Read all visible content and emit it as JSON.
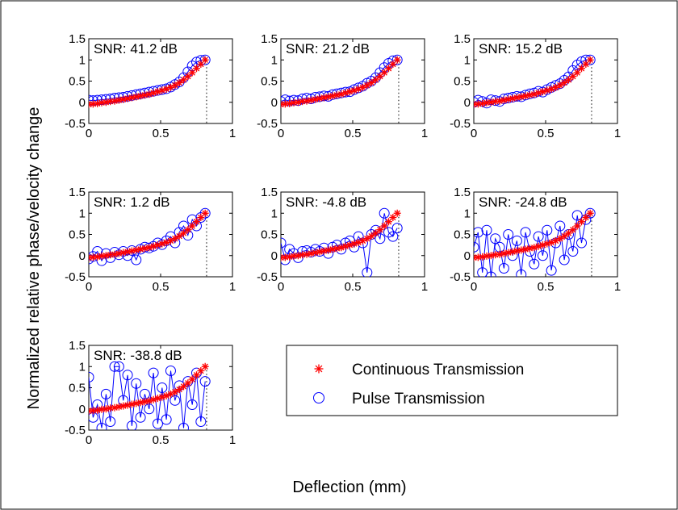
{
  "chart_data": {
    "type": "scatter",
    "layout": "small-multiples 3x3 (7 panels)",
    "ylabel": "Normalized relative phase/velocity change",
    "xlabel": "Deflection (mm)",
    "xlim": [
      0,
      1
    ],
    "ylim": [
      -0.5,
      1.5
    ],
    "xticks": [
      0,
      0.5,
      1
    ],
    "xtick_labels": [
      "0",
      "0.5",
      "1"
    ],
    "yticks": [
      -0.5,
      0,
      0.5,
      1,
      1.5
    ],
    "ytick_labels": [
      "-0.5",
      "0",
      "0.5",
      "1",
      "1.5"
    ],
    "reference_line_x": 0.82,
    "colors": {
      "continuous": "#ff0000",
      "pulse": "#0000ff",
      "axis": "#000000",
      "background": "#ffffff"
    },
    "legend": {
      "placement": "bottom-right",
      "entries": [
        {
          "label": "Continuous Transmission",
          "marker": "asterisk",
          "color": "#ff0000"
        },
        {
          "label": "Pulse Transmission",
          "marker": "circle-line",
          "color": "#0000ff"
        }
      ]
    },
    "continuous": {
      "x": [
        0.0,
        0.03,
        0.06,
        0.09,
        0.12,
        0.15,
        0.18,
        0.21,
        0.24,
        0.27,
        0.3,
        0.33,
        0.36,
        0.39,
        0.42,
        0.45,
        0.48,
        0.51,
        0.54,
        0.57,
        0.6,
        0.63,
        0.66,
        0.69,
        0.72,
        0.75,
        0.78,
        0.81
      ],
      "y": [
        -0.05,
        -0.04,
        -0.03,
        -0.01,
        0.0,
        0.02,
        0.03,
        0.05,
        0.07,
        0.09,
        0.11,
        0.13,
        0.15,
        0.17,
        0.19,
        0.22,
        0.25,
        0.28,
        0.31,
        0.35,
        0.4,
        0.46,
        0.53,
        0.61,
        0.7,
        0.8,
        0.9,
        1.0
      ]
    },
    "panels": [
      {
        "snr": "SNR: 41.2 dB",
        "x": [
          0.0,
          0.03,
          0.06,
          0.09,
          0.12,
          0.15,
          0.18,
          0.21,
          0.24,
          0.27,
          0.3,
          0.33,
          0.36,
          0.39,
          0.42,
          0.45,
          0.48,
          0.51,
          0.54,
          0.57,
          0.6,
          0.63,
          0.66,
          0.69,
          0.72,
          0.75,
          0.78,
          0.81
        ],
        "y": [
          0.05,
          0.04,
          0.05,
          0.06,
          0.07,
          0.08,
          0.1,
          0.11,
          0.12,
          0.14,
          0.16,
          0.18,
          0.2,
          0.22,
          0.24,
          0.26,
          0.28,
          0.3,
          0.32,
          0.36,
          0.42,
          0.48,
          0.58,
          0.72,
          0.86,
          0.95,
          0.99,
          1.0
        ]
      },
      {
        "snr": "SNR: 21.2 dB",
        "x": [
          0.0,
          0.03,
          0.06,
          0.09,
          0.12,
          0.15,
          0.18,
          0.21,
          0.24,
          0.27,
          0.3,
          0.33,
          0.36,
          0.39,
          0.42,
          0.45,
          0.48,
          0.51,
          0.54,
          0.57,
          0.6,
          0.63,
          0.66,
          0.69,
          0.72,
          0.75,
          0.78,
          0.81
        ],
        "y": [
          0.02,
          0.06,
          0.03,
          0.05,
          0.04,
          0.08,
          0.1,
          0.08,
          0.12,
          0.13,
          0.15,
          0.14,
          0.18,
          0.2,
          0.22,
          0.24,
          0.25,
          0.3,
          0.34,
          0.38,
          0.45,
          0.5,
          0.58,
          0.7,
          0.82,
          0.92,
          0.98,
          1.0
        ]
      },
      {
        "snr": "SNR: 15.2 dB",
        "x": [
          0.0,
          0.03,
          0.06,
          0.09,
          0.12,
          0.15,
          0.18,
          0.21,
          0.24,
          0.27,
          0.3,
          0.33,
          0.36,
          0.39,
          0.42,
          0.45,
          0.48,
          0.51,
          0.54,
          0.57,
          0.6,
          0.63,
          0.66,
          0.69,
          0.72,
          0.75,
          0.78,
          0.81
        ],
        "y": [
          0.0,
          0.05,
          0.02,
          -0.02,
          0.06,
          0.04,
          0.02,
          0.08,
          0.1,
          0.12,
          0.14,
          0.13,
          0.17,
          0.2,
          0.22,
          0.26,
          0.24,
          0.3,
          0.35,
          0.4,
          0.44,
          0.52,
          0.6,
          0.75,
          0.88,
          0.96,
          1.0,
          1.0
        ]
      },
      {
        "snr": "SNR: 1.2 dB",
        "x": [
          0.0,
          0.03,
          0.06,
          0.09,
          0.12,
          0.15,
          0.18,
          0.21,
          0.24,
          0.27,
          0.3,
          0.33,
          0.36,
          0.39,
          0.42,
          0.45,
          0.48,
          0.51,
          0.54,
          0.57,
          0.6,
          0.63,
          0.66,
          0.69,
          0.72,
          0.75,
          0.78,
          0.81
        ],
        "y": [
          -0.08,
          -0.02,
          0.1,
          -0.12,
          0.05,
          -0.05,
          0.08,
          0.02,
          0.1,
          0.0,
          0.12,
          -0.1,
          0.15,
          0.2,
          0.18,
          0.22,
          0.3,
          0.26,
          0.35,
          0.45,
          0.3,
          0.55,
          0.7,
          0.48,
          0.85,
          0.7,
          0.9,
          1.0
        ]
      },
      {
        "snr": "SNR: -4.8 dB",
        "x": [
          0.0,
          0.03,
          0.06,
          0.09,
          0.12,
          0.15,
          0.18,
          0.21,
          0.24,
          0.27,
          0.3,
          0.33,
          0.36,
          0.39,
          0.42,
          0.45,
          0.48,
          0.51,
          0.54,
          0.57,
          0.6,
          0.63,
          0.66,
          0.69,
          0.72,
          0.75,
          0.78,
          0.81
        ],
        "y": [
          0.3,
          -0.1,
          0.15,
          0.05,
          -0.05,
          0.1,
          0.12,
          0.08,
          0.15,
          0.1,
          0.18,
          0.05,
          0.2,
          0.25,
          0.15,
          0.3,
          0.35,
          0.2,
          0.45,
          0.3,
          -0.4,
          0.5,
          0.6,
          0.4,
          1.0,
          0.55,
          0.45,
          0.65
        ]
      },
      {
        "snr": "SNR: -24.8 dB",
        "x": [
          0.0,
          0.03,
          0.06,
          0.09,
          0.12,
          0.15,
          0.18,
          0.21,
          0.24,
          0.27,
          0.3,
          0.33,
          0.36,
          0.39,
          0.42,
          0.45,
          0.48,
          0.51,
          0.54,
          0.57,
          0.6,
          0.63,
          0.66,
          0.69,
          0.72,
          0.75,
          0.78,
          0.81
        ],
        "y": [
          0.2,
          0.55,
          -0.4,
          0.6,
          -0.5,
          0.4,
          0.2,
          -0.3,
          0.5,
          0.0,
          0.35,
          -0.45,
          0.55,
          0.1,
          -0.2,
          0.45,
          0.0,
          0.6,
          -0.35,
          0.3,
          0.7,
          -0.1,
          0.5,
          0.1,
          0.95,
          0.3,
          0.85,
          1.0
        ]
      },
      {
        "snr": "SNR: -38.8 dB",
        "x": [
          0.0,
          0.03,
          0.06,
          0.09,
          0.12,
          0.15,
          0.18,
          0.21,
          0.24,
          0.27,
          0.3,
          0.33,
          0.36,
          0.39,
          0.42,
          0.45,
          0.48,
          0.51,
          0.54,
          0.57,
          0.6,
          0.63,
          0.66,
          0.69,
          0.72,
          0.75,
          0.78,
          0.81
        ],
        "y": [
          0.75,
          -0.2,
          0.1,
          -0.45,
          0.35,
          -0.3,
          1.0,
          1.0,
          0.2,
          0.8,
          -0.4,
          0.6,
          -0.2,
          0.35,
          0.0,
          0.85,
          -0.35,
          0.5,
          -0.25,
          0.9,
          0.2,
          0.55,
          -0.45,
          0.65,
          0.1,
          0.85,
          -0.3,
          0.65
        ]
      }
    ]
  }
}
